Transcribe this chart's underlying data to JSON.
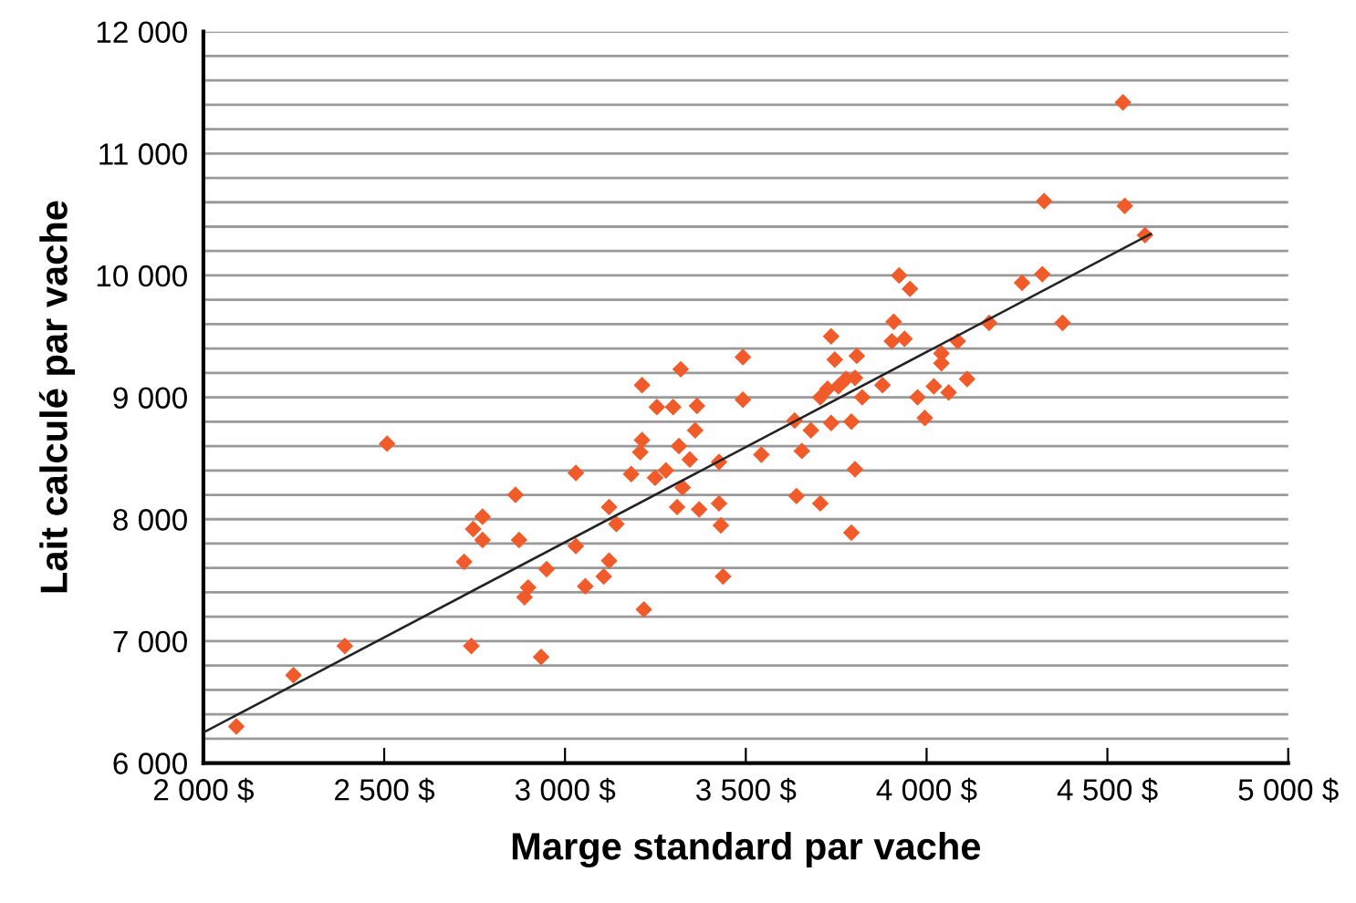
{
  "chart_data": {
    "type": "scatter",
    "xlabel": "Marge standard par vache",
    "ylabel": "Lait calculé par vache",
    "xlim": [
      2000,
      5000
    ],
    "ylim": [
      6000,
      12000
    ],
    "xticks": [
      {
        "value": 2000,
        "label": "2 000 $"
      },
      {
        "value": 2500,
        "label": "2 500 $"
      },
      {
        "value": 3000,
        "label": "3 000 $"
      },
      {
        "value": 3500,
        "label": "3 500 $"
      },
      {
        "value": 4000,
        "label": "4 000 $"
      },
      {
        "value": 4500,
        "label": "4 500 $"
      },
      {
        "value": 5000,
        "label": "5 000 $"
      }
    ],
    "yticks": [
      {
        "value": 6000,
        "label": "6 000"
      },
      {
        "value": 6200,
        "label": null
      },
      {
        "value": 6400,
        "label": null
      },
      {
        "value": 6600,
        "label": null
      },
      {
        "value": 6800,
        "label": null
      },
      {
        "value": 7000,
        "label": "7 000"
      },
      {
        "value": 7200,
        "label": null
      },
      {
        "value": 7400,
        "label": null
      },
      {
        "value": 7600,
        "label": null
      },
      {
        "value": 7800,
        "label": null
      },
      {
        "value": 8000,
        "label": "8 000"
      },
      {
        "value": 8200,
        "label": null
      },
      {
        "value": 8400,
        "label": null
      },
      {
        "value": 8600,
        "label": null
      },
      {
        "value": 8800,
        "label": null
      },
      {
        "value": 9000,
        "label": "9 000"
      },
      {
        "value": 9200,
        "label": null
      },
      {
        "value": 9400,
        "label": null
      },
      {
        "value": 9600,
        "label": null
      },
      {
        "value": 9800,
        "label": null
      },
      {
        "value": 10000,
        "label": "10 000"
      },
      {
        "value": 10200,
        "label": null
      },
      {
        "value": 10400,
        "label": null
      },
      {
        "value": 10600,
        "label": null
      },
      {
        "value": 10800,
        "label": null
      },
      {
        "value": 11000,
        "label": "11 000"
      },
      {
        "value": 11200,
        "label": null
      },
      {
        "value": 11400,
        "label": null
      },
      {
        "value": 11600,
        "label": null
      },
      {
        "value": 11800,
        "label": null
      },
      {
        "value": 12000,
        "label": "12 000"
      }
    ],
    "grid": "y",
    "marker": "diamond",
    "series": [
      {
        "color": "#f15a29",
        "x": [
          2091,
          2249,
          2391,
          2508,
          2721,
          2741,
          2746,
          2772,
          2772,
          2863,
          2873,
          2888,
          2898,
          2949,
          2934,
          3030,
          3030,
          3056,
          3107,
          3122,
          3122,
          3142,
          3183,
          3213,
          3213,
          3208,
          3218,
          3249,
          3254,
          3279,
          3299,
          3310,
          3315,
          3320,
          3325,
          3345,
          3360,
          3365,
          3371,
          3426,
          3426,
          3431,
          3437,
          3492,
          3492,
          3543,
          3635,
          3640,
          3655,
          3680,
          3706,
          3706,
          3726,
          3736,
          3736,
          3746,
          3756,
          3777,
          3792,
          3802,
          3792,
          3807,
          3802,
          3822,
          3878,
          3904,
          3909,
          3924,
          3939,
          3954,
          3975,
          3995,
          4020,
          4041,
          4061,
          4041,
          4086,
          4112,
          4173,
          4264,
          4320,
          4325,
          4376,
          4548,
          4543,
          4604
        ],
        "values": [
          6300,
          6720,
          6960,
          8620,
          7650,
          6960,
          7920,
          8020,
          7830,
          8200,
          7830,
          7360,
          7440,
          7590,
          6870,
          8380,
          7780,
          7450,
          7530,
          7660,
          8100,
          7960,
          8370,
          9100,
          8650,
          8550,
          7260,
          8340,
          8920,
          8400,
          8920,
          8100,
          8600,
          9230,
          8260,
          8490,
          8730,
          8930,
          8080,
          8470,
          8130,
          7950,
          7530,
          9330,
          8980,
          8530,
          8810,
          8190,
          8560,
          8730,
          9000,
          8130,
          9070,
          8790,
          9500,
          9310,
          9090,
          9150,
          8800,
          8410,
          7890,
          9340,
          9160,
          9000,
          9100,
          9460,
          9620,
          10000,
          9480,
          9890,
          9000,
          8830,
          9090,
          9360,
          9040,
          9280,
          9460,
          9150,
          9610,
          9940,
          10010,
          10610,
          9610,
          10570,
          11420,
          10330
        ]
      },
      {
        "type": "line",
        "color": "#222222",
        "marker": "none",
        "x": [
          2000,
          4620
        ],
        "values": [
          6250,
          10340
        ]
      }
    ]
  }
}
